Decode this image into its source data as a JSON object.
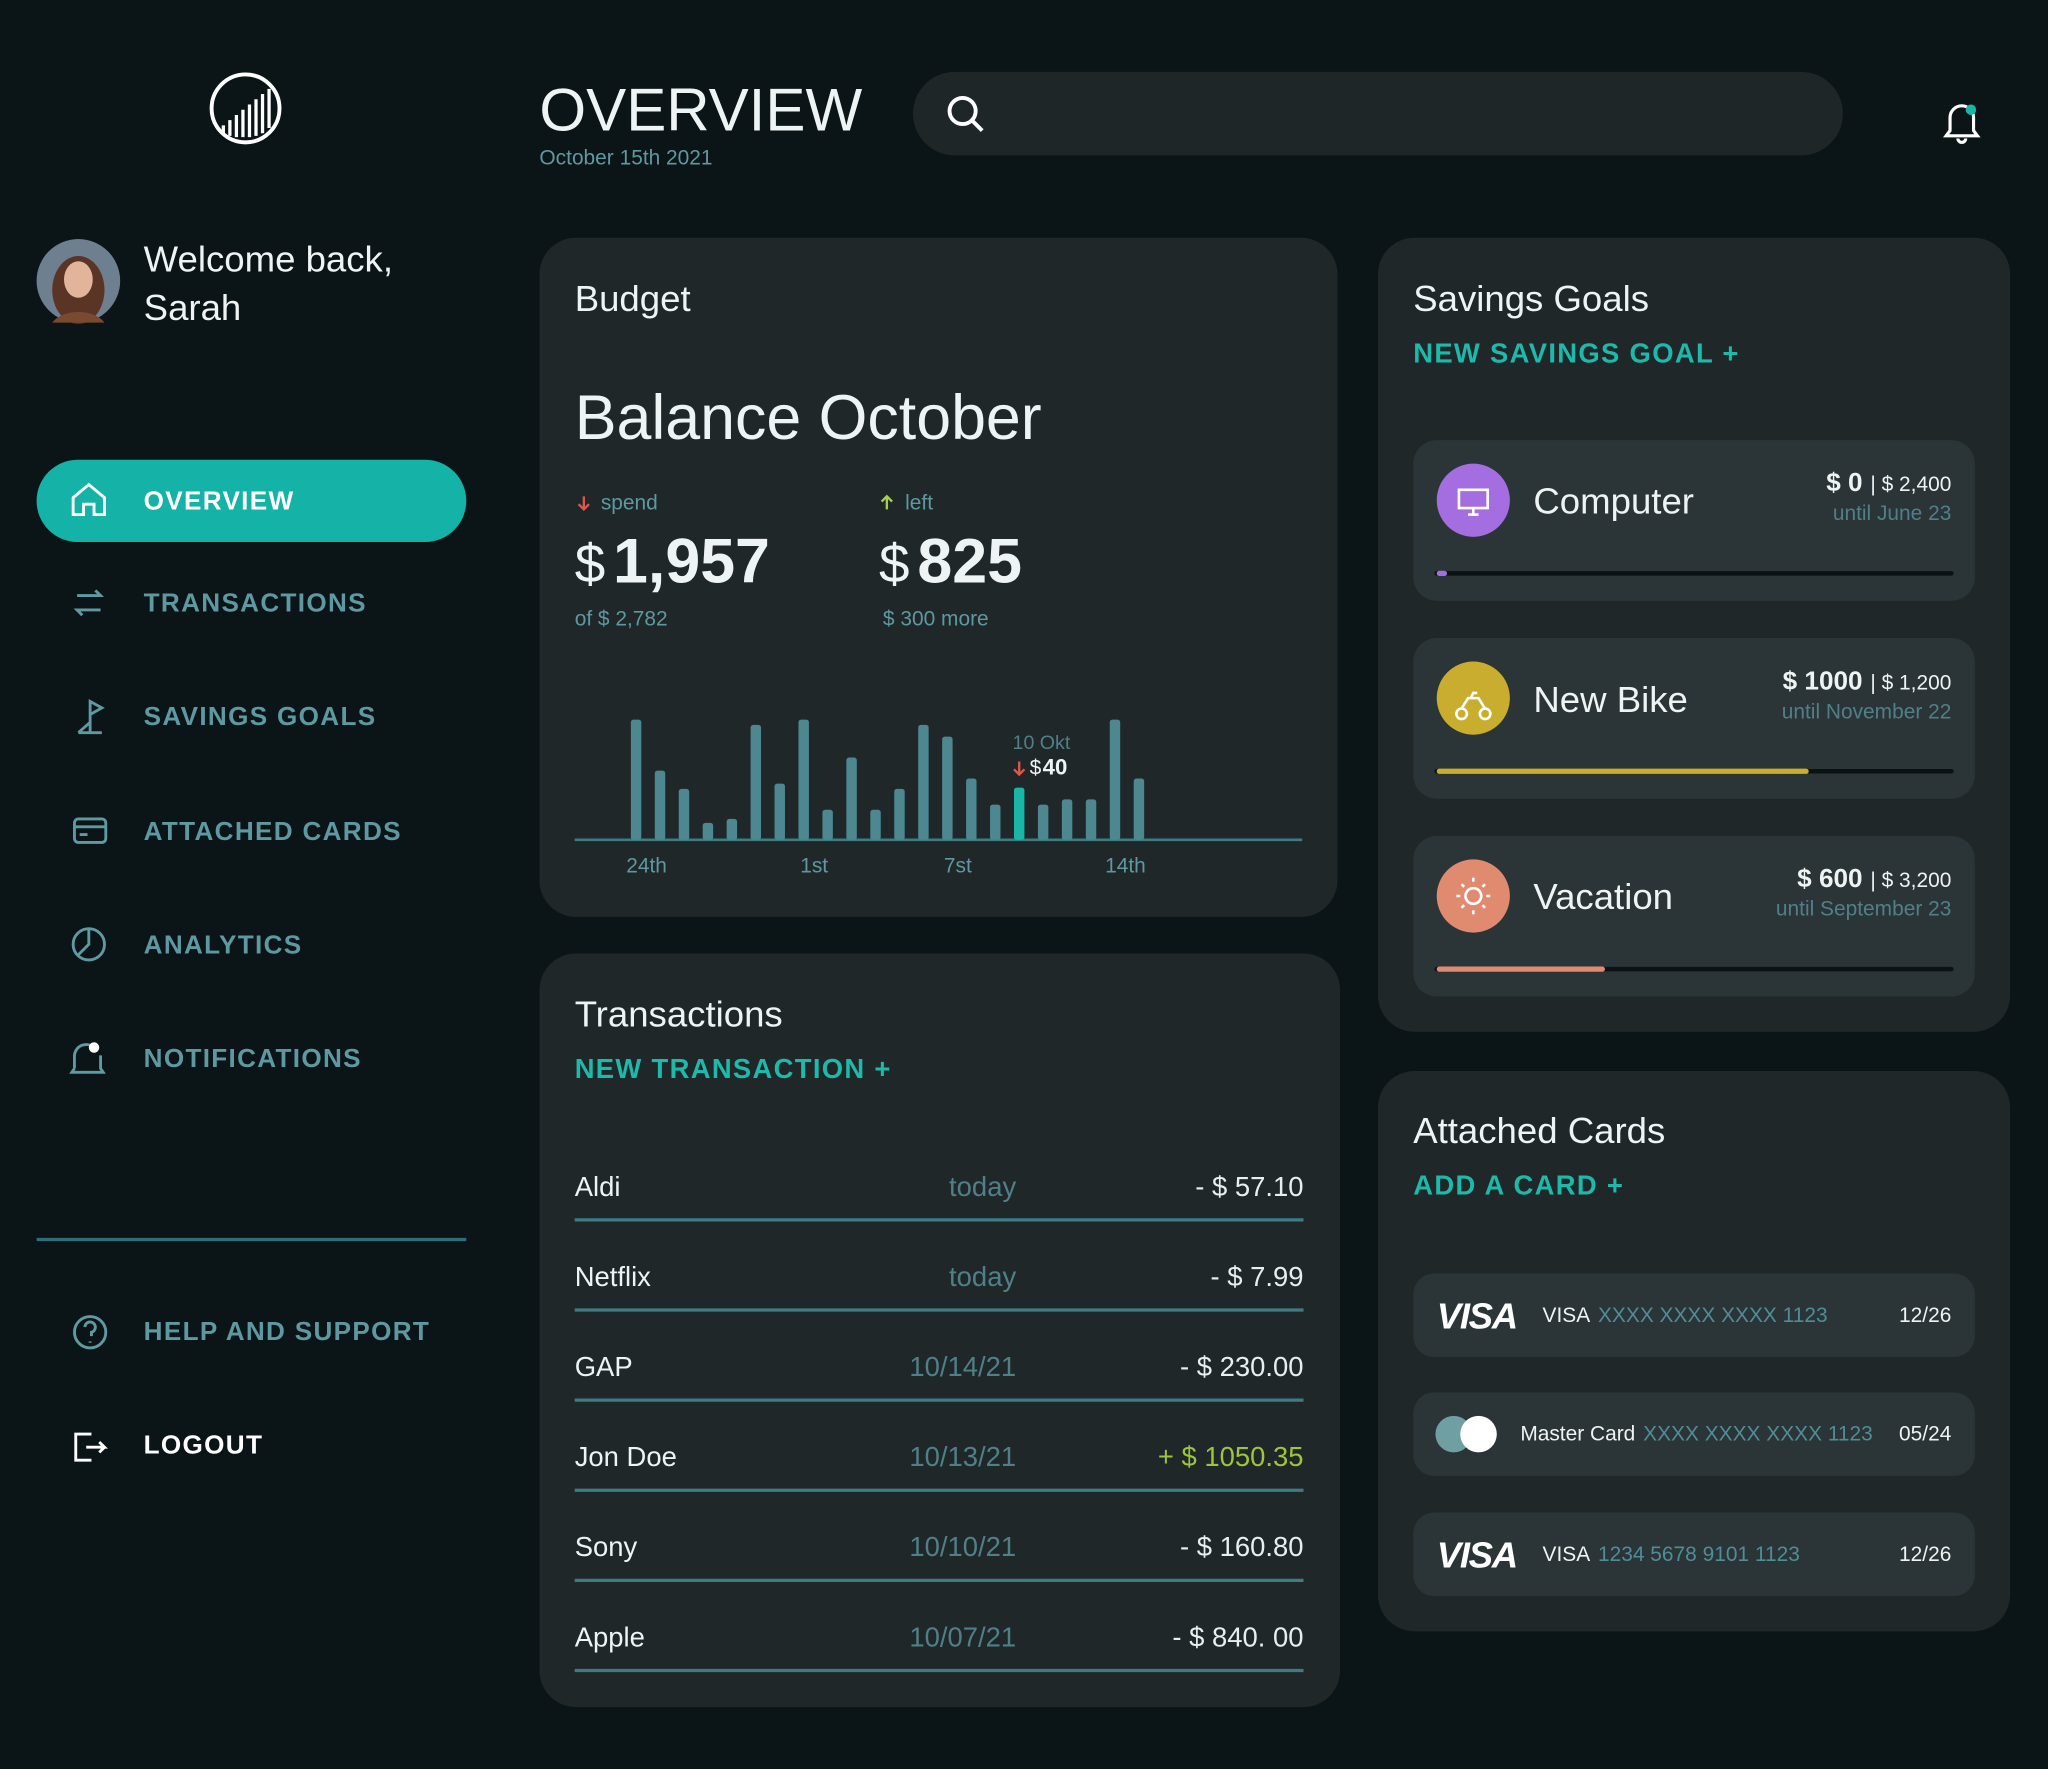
{
  "header": {
    "title": "OVERVIEW",
    "date": "October 15th 2021"
  },
  "sidebar": {
    "welcome": "Welcome back,",
    "name": "Sarah",
    "nav": [
      "OVERVIEW",
      "TRANSACTIONS",
      "SAVINGS GOALS",
      "ATTACHED CARDS",
      "ANALYTICS",
      "NOTIFICATIONS"
    ],
    "help": "HELP AND SUPPORT",
    "logout": "LOGOUT"
  },
  "budget": {
    "title": "Budget",
    "heading": "Balance October",
    "spend": {
      "label": "spend",
      "currency": "$",
      "amount": "1,957",
      "note": "of $ 2,782"
    },
    "left": {
      "label": "left",
      "currency": "$",
      "amount": "825",
      "note": "$ 300 more"
    },
    "chart": {
      "type": "bar",
      "categories": [
        "24th",
        null,
        null,
        null,
        null,
        null,
        null,
        "1st",
        null,
        null,
        null,
        null,
        null,
        "7st",
        null,
        null,
        null,
        null,
        null,
        null,
        "14th",
        null
      ],
      "values": [
        92,
        53,
        39,
        13,
        16,
        88,
        43,
        92,
        23,
        63,
        23,
        39,
        88,
        79,
        47,
        27,
        40,
        27,
        31,
        31,
        92,
        47
      ],
      "color": "#4d8790",
      "highlight_color": "#19b5a6",
      "highlight_index": 16,
      "annotation": "10 Okt",
      "currency": "$"
    }
  },
  "transactions": {
    "title": "Transactions",
    "action": "NEW TRANSACTION +",
    "rows": [
      {
        "name": "Aldi",
        "date": "today",
        "amount": "- $ 57.10",
        "color": "#e8eeee"
      },
      {
        "name": "Netflix",
        "date": "today",
        "amount": "- $ 7.99",
        "color": "#e8eeee"
      },
      {
        "name": "GAP",
        "date": "10/14/21",
        "amount": "- $ 230.00",
        "color": "#e8eeee"
      },
      {
        "name": "Jon Doe",
        "date": "10/13/21",
        "amount": "+ $ 1050.35",
        "color": "#9cc43c"
      },
      {
        "name": "Sony",
        "date": "10/10/21",
        "amount": "- $ 160.80",
        "color": "#e8eeee"
      },
      {
        "name": "Apple",
        "date": "10/07/21",
        "amount": "- $ 840. 00",
        "color": "#e8eeee"
      }
    ]
  },
  "savings": {
    "title": "Savings Goals",
    "action": "NEW SAVINGS GOAL +",
    "goals": [
      {
        "name": "Computer",
        "saved": "$ 0",
        "target": "| $ 2,400",
        "until": "until June 23",
        "color": "#a46ee0",
        "progress": 1
      },
      {
        "name": "New Bike",
        "saved": "$ 1000",
        "target": "| $ 1,200",
        "until": "until November 22",
        "color": "#c9ad2e",
        "progress": 72
      },
      {
        "name": "Vacation",
        "saved": "$ 600",
        "target": "| $ 3,200",
        "until": "until September 23",
        "color": "#e08a70",
        "progress": 32
      }
    ]
  },
  "cards": {
    "title": "Attached Cards",
    "action": "ADD A CARD +",
    "items": [
      {
        "logo": "VISA",
        "name": "VISA",
        "number": "XXXX XXXX XXXX 1123",
        "expiry": "12/26"
      },
      {
        "logo": null,
        "name": "Master Card",
        "number": "XXXX XXXX XXXX 1123",
        "expiry": "05/24"
      },
      {
        "logo": "VISA",
        "name": "VISA",
        "number": "1234 5678 9101 1123",
        "expiry": "12/26"
      }
    ]
  }
}
